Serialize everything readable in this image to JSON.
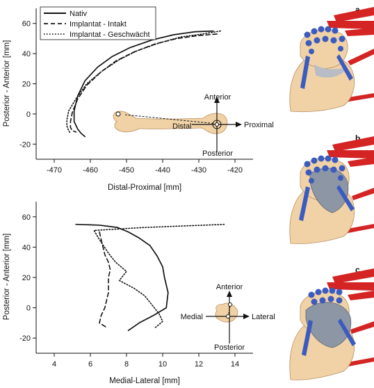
{
  "figure": {
    "panel_labels": [
      "a",
      "b",
      "c"
    ],
    "legend": [
      "Nativ",
      "Implantat - Intakt",
      "Implantat - Geschwächt"
    ],
    "colors": {
      "bone": "#f0d2a6",
      "ligament": "#3b5bbf",
      "muscle": "#d42424",
      "implant": "#8c96a4"
    }
  },
  "chart_data": [
    {
      "type": "line",
      "xlabel": "Distal-Proximal [mm]",
      "ylabel": "Posterior - Anterior [mm]",
      "xlim": [
        -475,
        -415
      ],
      "ylim": [
        -30,
        70
      ],
      "xticks": [
        -470,
        -460,
        -450,
        -440,
        -430,
        -420
      ],
      "yticks": [
        -20,
        0,
        20,
        40,
        60
      ],
      "legend_position": "top-left",
      "series": [
        {
          "name": "Nativ",
          "style": "solid",
          "x": [
            -426,
            -431,
            -437,
            -443,
            -449,
            -454,
            -458,
            -461.5,
            -463.5,
            -464.5,
            -464.5,
            -463.5,
            -462.5,
            -461.5
          ],
          "y": [
            55,
            54.5,
            52.5,
            49,
            44,
            38,
            31,
            22,
            12,
            2,
            -5,
            -10,
            -13,
            -15
          ]
        },
        {
          "name": "Implantat - Intakt",
          "style": "dashed",
          "x": [
            -425,
            -430,
            -436,
            -442,
            -448,
            -453,
            -457,
            -461,
            -463.5,
            -465,
            -465.5,
            -465.5,
            -465,
            -464
          ],
          "y": [
            53,
            52,
            50,
            46.5,
            41,
            35,
            28,
            19,
            10,
            1,
            -5,
            -9,
            -11,
            -12
          ]
        },
        {
          "name": "Implantat - Geschwächt",
          "style": "dotted",
          "x": [
            -424,
            -429,
            -435,
            -441,
            -447,
            -452,
            -457,
            -461,
            -464,
            -466,
            -466.5,
            -466.5,
            -466,
            -465.5
          ],
          "y": [
            55,
            53,
            51,
            47,
            42,
            36,
            28,
            20,
            10,
            2,
            -4,
            -8,
            -11,
            -13
          ]
        }
      ],
      "inset": {
        "labels": [
          "Anterior",
          "Posterior",
          "Distal",
          "Proximal"
        ]
      }
    },
    {
      "type": "line",
      "xlabel": "Medial-Lateral [mm]",
      "ylabel": "Posterior - Anterior [mm]",
      "xlim": [
        3,
        15
      ],
      "ylim": [
        -30,
        70
      ],
      "xticks": [
        4,
        6,
        8,
        10,
        12,
        14
      ],
      "yticks": [
        -20,
        0,
        20,
        40,
        60
      ],
      "series": [
        {
          "name": "Nativ",
          "style": "solid",
          "x": [
            5.2,
            6.5,
            7.5,
            8.1,
            8.7,
            9.3,
            9.7,
            10.0,
            10.1,
            10.3,
            10.2,
            9.5,
            8.7,
            8.1
          ],
          "y": [
            55,
            54.5,
            53,
            50,
            46,
            41,
            34,
            27,
            20,
            10,
            0,
            -5,
            -10,
            -15
          ]
        },
        {
          "name": "Implantat - Intakt",
          "style": "dashed",
          "x": [
            6.5,
            6.6,
            6.7,
            6.8,
            7.0,
            7.1,
            7.0,
            7.0,
            7.0,
            6.9,
            6.8,
            6.6,
            6.5,
            6.9
          ],
          "y": [
            50,
            45,
            40,
            35,
            30,
            25,
            20,
            15,
            10,
            5,
            0,
            -5,
            -10,
            -13
          ]
        },
        {
          "name": "Implantat - Geschwächt",
          "style": "dotted",
          "x": [
            13.4,
            9.0,
            6.2,
            6.5,
            7.0,
            7.4,
            8.0,
            7.6,
            8.4,
            9.0,
            9.4,
            9.8,
            10.0,
            9.6
          ],
          "y": [
            55,
            53,
            51,
            45,
            36,
            30,
            24,
            18,
            13,
            8,
            2,
            -4,
            -9,
            -13
          ]
        }
      ],
      "inset": {
        "labels": [
          "Anterior",
          "Posterior",
          "Medial",
          "Lateral"
        ]
      }
    }
  ]
}
